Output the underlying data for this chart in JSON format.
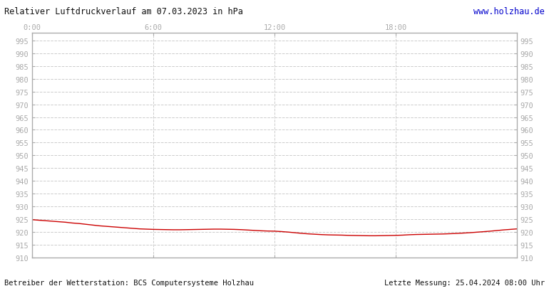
{
  "title_left": "Relativer Luftdruckverlauf am 07.03.2023 in hPa",
  "title_right": "www.holzhau.de",
  "footer_left": "Betreiber der Wetterstation: BCS Computersysteme Holzhau",
  "footer_right": "Letzte Messung: 25.04.2024 08:00 Uhr",
  "x_tick_labels": [
    "0:00",
    "6:00",
    "12:00",
    "18:00"
  ],
  "x_tick_positions": [
    0,
    360,
    720,
    1080
  ],
  "x_max": 1440,
  "ylim": [
    910,
    998
  ],
  "ytick_min": 910,
  "ytick_max": 995,
  "ytick_step": 5,
  "bg_color": "#ffffff",
  "plot_bg_color": "#ffffff",
  "grid_color": "#cccccc",
  "line_color": "#cc0000",
  "border_color": "#aaaaaa",
  "title_color_left": "#111111",
  "title_color_right": "#0000cc",
  "footer_color": "#111111",
  "label_color": "#aaaaaa",
  "pressure_data": [
    [
      0,
      924.8
    ],
    [
      20,
      924.6
    ],
    [
      40,
      924.4
    ],
    [
      60,
      924.2
    ],
    [
      80,
      924.0
    ],
    [
      100,
      923.8
    ],
    [
      120,
      923.5
    ],
    [
      140,
      923.3
    ],
    [
      160,
      923.0
    ],
    [
      180,
      922.7
    ],
    [
      200,
      922.4
    ],
    [
      220,
      922.2
    ],
    [
      240,
      922.0
    ],
    [
      260,
      921.8
    ],
    [
      280,
      921.6
    ],
    [
      300,
      921.4
    ],
    [
      320,
      921.2
    ],
    [
      340,
      921.1
    ],
    [
      360,
      921.0
    ],
    [
      380,
      920.95
    ],
    [
      400,
      920.9
    ],
    [
      420,
      920.85
    ],
    [
      440,
      920.85
    ],
    [
      460,
      920.9
    ],
    [
      480,
      920.95
    ],
    [
      500,
      921.0
    ],
    [
      520,
      921.05
    ],
    [
      540,
      921.1
    ],
    [
      560,
      921.1
    ],
    [
      580,
      921.05
    ],
    [
      600,
      921.0
    ],
    [
      620,
      920.9
    ],
    [
      640,
      920.75
    ],
    [
      660,
      920.6
    ],
    [
      680,
      920.45
    ],
    [
      700,
      920.35
    ],
    [
      720,
      920.3
    ],
    [
      740,
      920.15
    ],
    [
      760,
      919.95
    ],
    [
      780,
      919.7
    ],
    [
      800,
      919.45
    ],
    [
      820,
      919.25
    ],
    [
      840,
      919.1
    ],
    [
      860,
      918.95
    ],
    [
      880,
      918.85
    ],
    [
      900,
      918.8
    ],
    [
      920,
      918.75
    ],
    [
      940,
      918.65
    ],
    [
      960,
      918.6
    ],
    [
      980,
      918.55
    ],
    [
      1000,
      918.5
    ],
    [
      1020,
      918.5
    ],
    [
      1040,
      918.55
    ],
    [
      1060,
      918.6
    ],
    [
      1080,
      918.65
    ],
    [
      1100,
      918.75
    ],
    [
      1120,
      918.9
    ],
    [
      1140,
      919.0
    ],
    [
      1160,
      919.05
    ],
    [
      1180,
      919.1
    ],
    [
      1200,
      919.15
    ],
    [
      1220,
      919.2
    ],
    [
      1240,
      919.3
    ],
    [
      1260,
      919.4
    ],
    [
      1280,
      919.55
    ],
    [
      1300,
      919.7
    ],
    [
      1320,
      919.9
    ],
    [
      1340,
      920.1
    ],
    [
      1360,
      920.3
    ],
    [
      1380,
      920.55
    ],
    [
      1400,
      920.8
    ],
    [
      1420,
      921.0
    ],
    [
      1440,
      921.2
    ]
  ]
}
